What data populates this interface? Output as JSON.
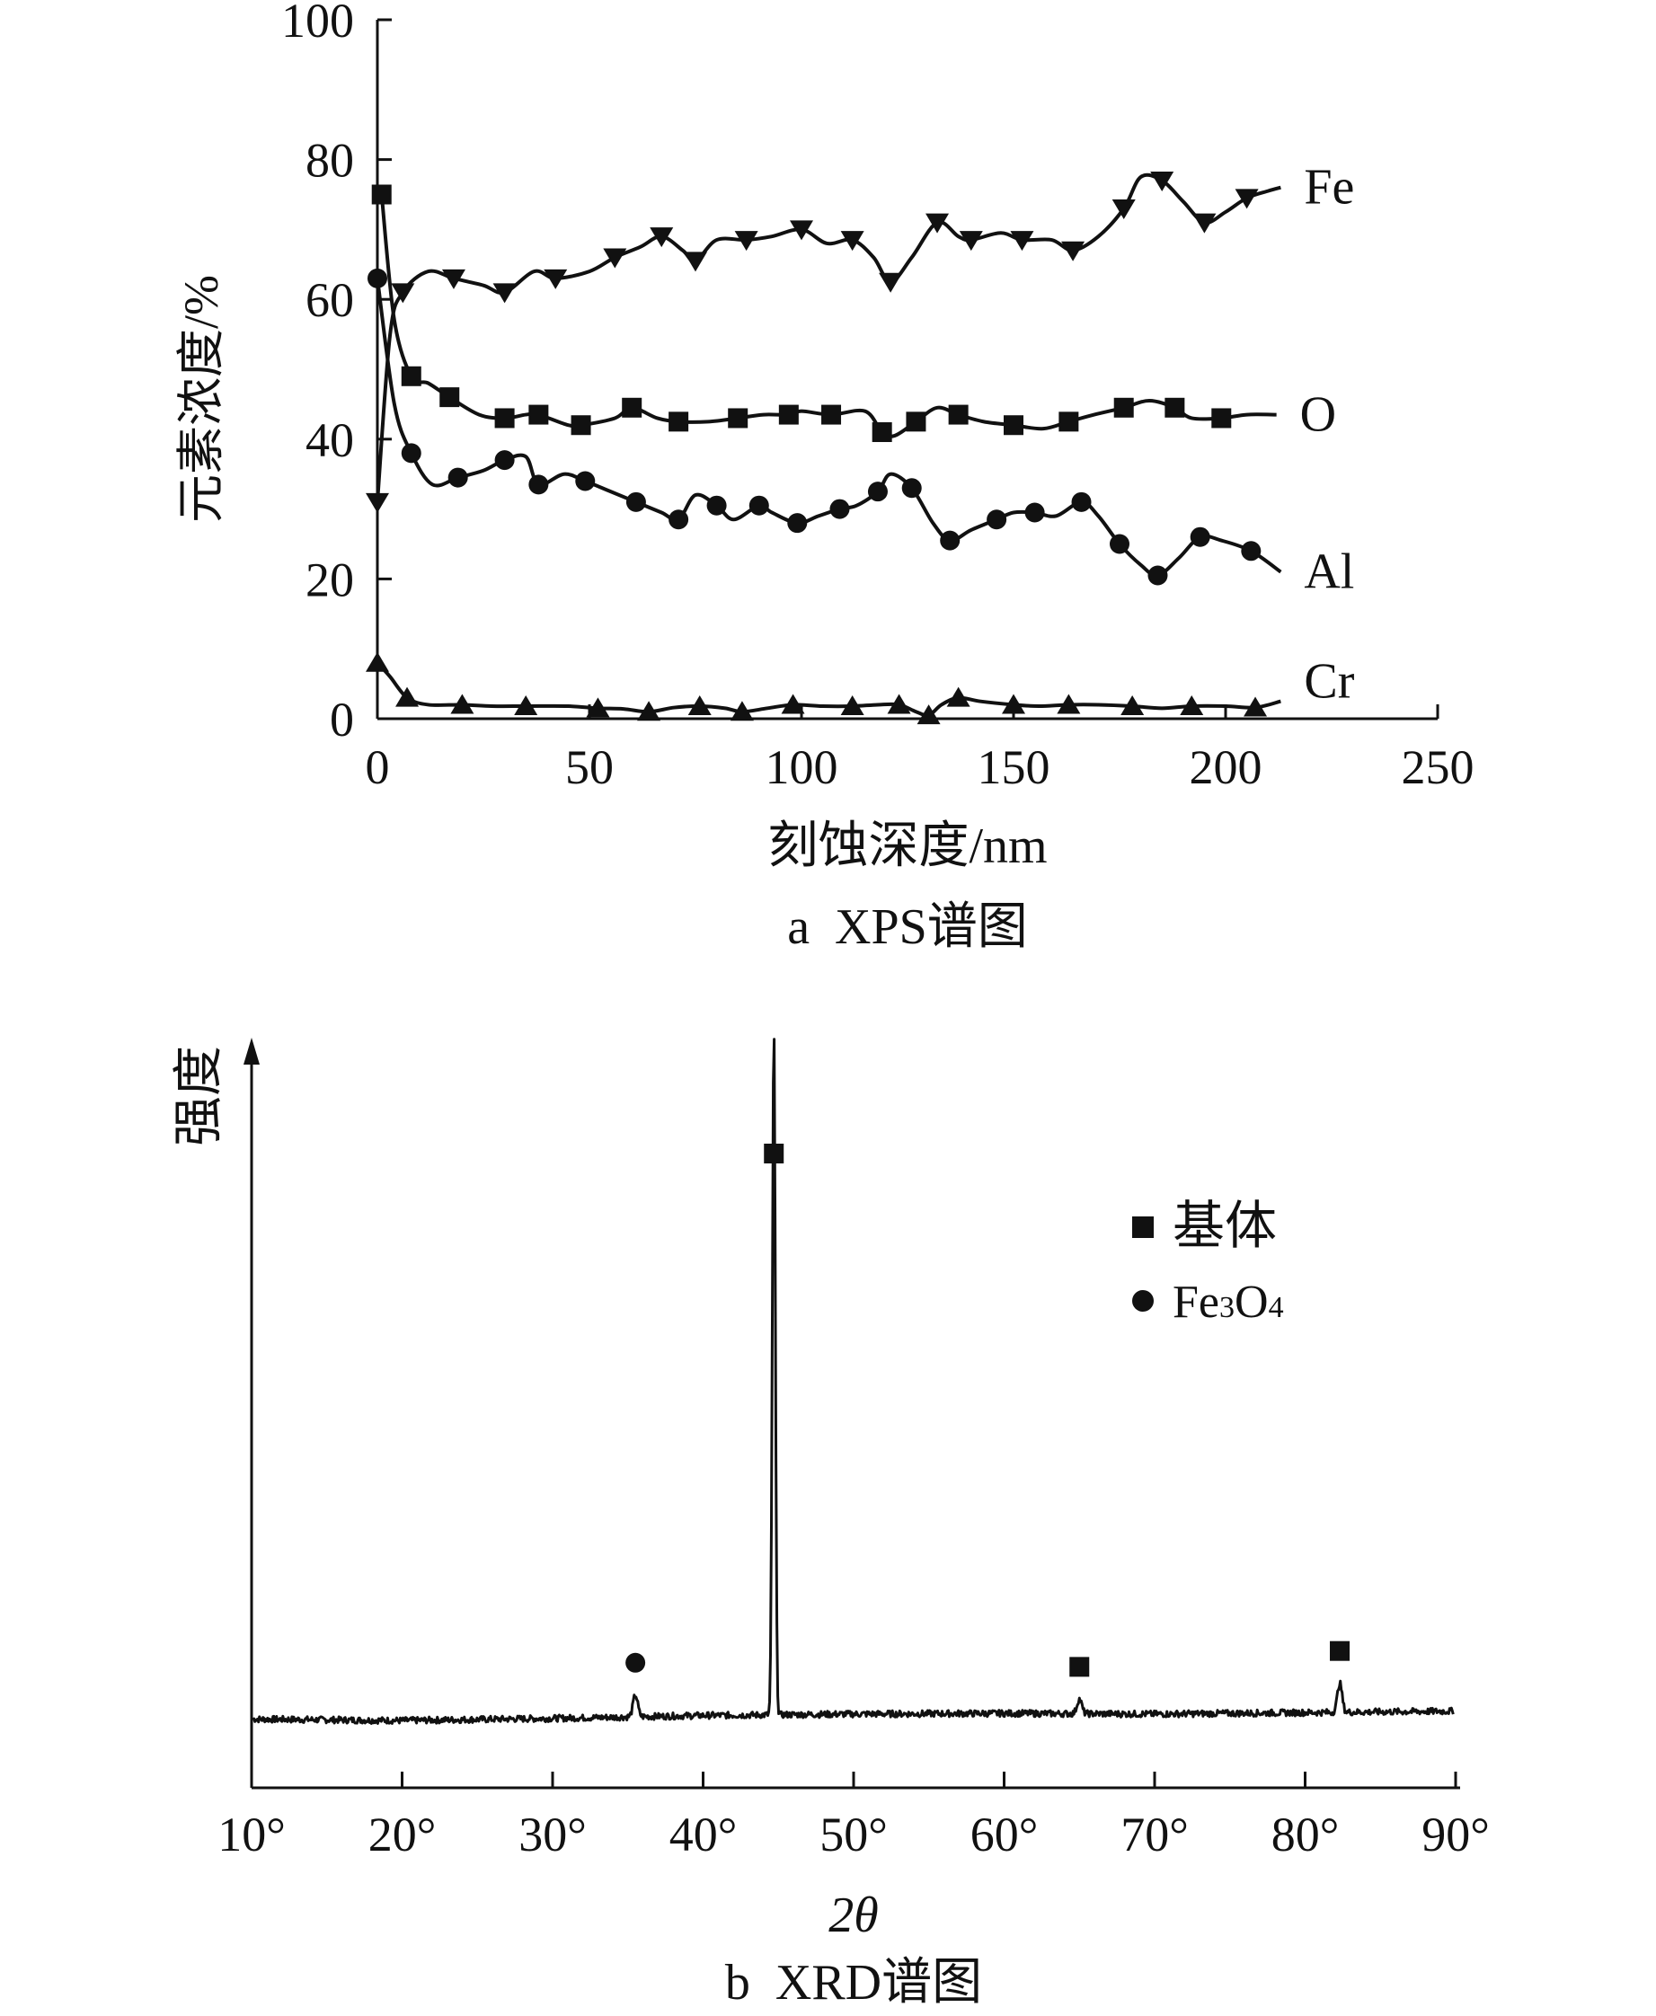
{
  "chart_data": [
    {
      "type": "line",
      "caption": "a  XPS谱图",
      "xlabel": "刻蚀深度/nm",
      "ylabel": "元素浓度/%",
      "xlim": [
        0,
        250
      ],
      "ylim": [
        0,
        100
      ],
      "xticks": [
        "0",
        "50",
        "100",
        "150",
        "200",
        "250"
      ],
      "yticks": [
        "0",
        "20",
        "40",
        "60",
        "80",
        "100"
      ],
      "xtick_values": [
        0,
        50,
        100,
        150,
        200,
        250
      ],
      "ytick_values": [
        0,
        20,
        40,
        60,
        80,
        100
      ],
      "series": [
        {
          "name": "Fe",
          "marker": "triangle-down",
          "points": [
            [
              0,
              31
            ],
            [
              3,
              55
            ],
            [
              6,
              61
            ],
            [
              12,
              64
            ],
            [
              18,
              63
            ],
            [
              25,
              62
            ],
            [
              30,
              61
            ],
            [
              37,
              64
            ],
            [
              42,
              63
            ],
            [
              50,
              64
            ],
            [
              56,
              66
            ],
            [
              62,
              67.5
            ],
            [
              67,
              69
            ],
            [
              72,
              67
            ],
            [
              75,
              65.5
            ],
            [
              80,
              68.5
            ],
            [
              87,
              68.5
            ],
            [
              93,
              69
            ],
            [
              100,
              70
            ],
            [
              106,
              68
            ],
            [
              112,
              68.5
            ],
            [
              117,
              66
            ],
            [
              121,
              62.5
            ],
            [
              126,
              66
            ],
            [
              132,
              71
            ],
            [
              137,
              69
            ],
            [
              140,
              68.5
            ],
            [
              147,
              69.5
            ],
            [
              152,
              68.5
            ],
            [
              159,
              68.5
            ],
            [
              164,
              67
            ],
            [
              170,
              69
            ],
            [
              176,
              73
            ],
            [
              180,
              77.5
            ],
            [
              185,
              77
            ],
            [
              190,
              74
            ],
            [
              195,
              71
            ],
            [
              200,
              72.5
            ],
            [
              205,
              74.5
            ],
            [
              210,
              75.5
            ],
            [
              213,
              76
            ]
          ]
        },
        {
          "name": "O",
          "marker": "square",
          "points": [
            [
              1,
              75
            ],
            [
              4,
              57
            ],
            [
              8,
              49
            ],
            [
              12,
              48
            ],
            [
              17,
              46
            ],
            [
              24,
              43.5
            ],
            [
              30,
              43
            ],
            [
              35,
              43.5
            ],
            [
              38,
              43.5
            ],
            [
              45,
              42
            ],
            [
              48,
              42
            ],
            [
              56,
              43
            ],
            [
              60,
              44.5
            ],
            [
              66,
              43
            ],
            [
              71,
              42.5
            ],
            [
              78,
              42.5
            ],
            [
              85,
              43
            ],
            [
              91,
              43.5
            ],
            [
              97,
              43.5
            ],
            [
              100,
              44
            ],
            [
              107,
              43.5
            ],
            [
              115,
              44
            ],
            [
              119,
              41
            ],
            [
              122,
              40.5
            ],
            [
              127,
              42.5
            ],
            [
              132,
              44.5
            ],
            [
              137,
              43.5
            ],
            [
              143,
              42.5
            ],
            [
              150,
              42
            ],
            [
              157,
              41.5
            ],
            [
              163,
              42.5
            ],
            [
              169,
              43.5
            ],
            [
              176,
              44.5
            ],
            [
              182,
              45.5
            ],
            [
              188,
              44.5
            ],
            [
              192,
              43
            ],
            [
              199,
              43
            ],
            [
              205,
              43.5
            ],
            [
              212,
              43.5
            ]
          ]
        },
        {
          "name": "Al",
          "marker": "circle",
          "points": [
            [
              0,
              63
            ],
            [
              4,
              45
            ],
            [
              8,
              38
            ],
            [
              13,
              33.5
            ],
            [
              19,
              34.5
            ],
            [
              25,
              35.5
            ],
            [
              30,
              37
            ],
            [
              35,
              37.5
            ],
            [
              38,
              33.5
            ],
            [
              44,
              35
            ],
            [
              49,
              34
            ],
            [
              55,
              32.5
            ],
            [
              61,
              31
            ],
            [
              67,
              29.5
            ],
            [
              71,
              28.5
            ],
            [
              75,
              32
            ],
            [
              80,
              30.5
            ],
            [
              84,
              28.5
            ],
            [
              90,
              30.5
            ],
            [
              93,
              29.5
            ],
            [
              99,
              28
            ],
            [
              104,
              29
            ],
            [
              109,
              30
            ],
            [
              113,
              30.5
            ],
            [
              118,
              32.5
            ],
            [
              121,
              35
            ],
            [
              126,
              33
            ],
            [
              131,
              28
            ],
            [
              135,
              25.5
            ],
            [
              140,
              27
            ],
            [
              146,
              28.5
            ],
            [
              150,
              29.5
            ],
            [
              155,
              29.5
            ],
            [
              160,
              29
            ],
            [
              166,
              31
            ],
            [
              170,
              29
            ],
            [
              175,
              25
            ],
            [
              180,
              22
            ],
            [
              184,
              20.5
            ],
            [
              189,
              23
            ],
            [
              194,
              26
            ],
            [
              199,
              25.5
            ],
            [
              206,
              24
            ],
            [
              213,
              21
            ]
          ]
        },
        {
          "name": "Cr",
          "marker": "triangle-up",
          "points": [
            [
              0,
              8
            ],
            [
              3,
              6
            ],
            [
              7,
              3
            ],
            [
              12,
              2
            ],
            [
              20,
              2
            ],
            [
              27,
              1.8
            ],
            [
              35,
              1.8
            ],
            [
              45,
              1.8
            ],
            [
              52,
              1.5
            ],
            [
              58,
              1.4
            ],
            [
              64,
              1
            ],
            [
              70,
              1.6
            ],
            [
              76,
              1.8
            ],
            [
              82,
              1.5
            ],
            [
              86,
              1
            ],
            [
              92,
              1.5
            ],
            [
              98,
              2
            ],
            [
              105,
              1.8
            ],
            [
              112,
              1.8
            ],
            [
              118,
              2
            ],
            [
              123,
              2
            ],
            [
              127,
              1
            ],
            [
              130,
              0.5
            ],
            [
              133,
              2
            ],
            [
              137,
              3
            ],
            [
              142,
              2.5
            ],
            [
              150,
              2
            ],
            [
              156,
              1.8
            ],
            [
              163,
              2
            ],
            [
              170,
              2
            ],
            [
              178,
              1.8
            ],
            [
              185,
              1.5
            ],
            [
              192,
              1.8
            ],
            [
              200,
              1.8
            ],
            [
              207,
              1.6
            ],
            [
              213,
              2.5
            ]
          ]
        }
      ]
    },
    {
      "type": "line",
      "caption": "b  XRD谱图",
      "xlabel": "2θ",
      "ylabel": "强度",
      "xlim": [
        10,
        90
      ],
      "xticks": [
        "10°",
        "20°",
        "30°",
        "40°",
        "50°",
        "60°",
        "70°",
        "80°",
        "90°"
      ],
      "xtick_values": [
        10,
        20,
        30,
        40,
        50,
        60,
        70,
        80,
        90
      ],
      "ylim": [
        0,
        100
      ],
      "y_ticks_shown": false,
      "legend_position": "top-right",
      "legend": [
        {
          "label": "基体",
          "marker": "square"
        },
        {
          "label_main": "Fe",
          "sub1": "3",
          "mid": "O",
          "sub2": "4",
          "marker": "circle"
        }
      ],
      "peaks": [
        {
          "x": 35.5,
          "height": 3,
          "phase": "Fe3O4",
          "marker": "circle"
        },
        {
          "x": 44.7,
          "height": 95,
          "phase": "基体",
          "marker": "square"
        },
        {
          "x": 65.0,
          "height": 2,
          "phase": "基体",
          "marker": "square"
        },
        {
          "x": 82.3,
          "height": 4,
          "phase": "基体",
          "marker": "square"
        }
      ],
      "baseline": [
        [
          10,
          9.5
        ],
        [
          20,
          9.3
        ],
        [
          30,
          9.6
        ],
        [
          40,
          10
        ],
        [
          50,
          10.2
        ],
        [
          60,
          10.3
        ],
        [
          70,
          10.2
        ],
        [
          80,
          10.4
        ],
        [
          90,
          10.6
        ]
      ]
    }
  ]
}
